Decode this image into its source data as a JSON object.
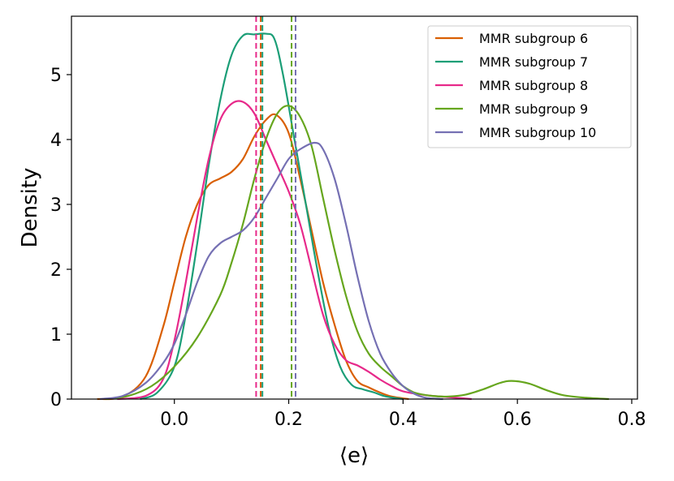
{
  "chart_data": {
    "type": "line",
    "title": "",
    "xlabel": "⟨e⟩",
    "ylabel": "Density",
    "xlim": [
      -0.18,
      0.81
    ],
    "ylim": [
      0,
      5.9
    ],
    "xticks": [
      0.0,
      0.2,
      0.4,
      0.6,
      0.8
    ],
    "xtick_labels": [
      "0.0",
      "0.2",
      "0.4",
      "0.6",
      "0.8"
    ],
    "yticks": [
      0,
      1,
      2,
      3,
      4,
      5
    ],
    "ytick_labels": [
      "0",
      "1",
      "2",
      "3",
      "4",
      "5"
    ],
    "grid": false,
    "legend_position": "top-right",
    "series": [
      {
        "name": "MMR subgroup 6",
        "color": "#d95f02",
        "mean": 0.151,
        "points": [
          [
            -0.135,
            0
          ],
          [
            -0.09,
            0.04
          ],
          [
            -0.05,
            0.35
          ],
          [
            -0.02,
            1.1
          ],
          [
            0.0,
            1.8
          ],
          [
            0.02,
            2.5
          ],
          [
            0.04,
            3.0
          ],
          [
            0.06,
            3.3
          ],
          [
            0.08,
            3.4
          ],
          [
            0.1,
            3.5
          ],
          [
            0.12,
            3.7
          ],
          [
            0.14,
            4.05
          ],
          [
            0.16,
            4.3
          ],
          [
            0.178,
            4.38
          ],
          [
            0.2,
            4.1
          ],
          [
            0.22,
            3.4
          ],
          [
            0.24,
            2.6
          ],
          [
            0.26,
            1.8
          ],
          [
            0.28,
            1.15
          ],
          [
            0.3,
            0.6
          ],
          [
            0.32,
            0.28
          ],
          [
            0.34,
            0.18
          ],
          [
            0.36,
            0.1
          ],
          [
            0.38,
            0.04
          ],
          [
            0.41,
            0
          ]
        ]
      },
      {
        "name": "MMR subgroup 7",
        "color": "#1b9e77",
        "mean": 0.154,
        "points": [
          [
            -0.06,
            0
          ],
          [
            -0.03,
            0.1
          ],
          [
            0.0,
            0.5
          ],
          [
            0.02,
            1.3
          ],
          [
            0.04,
            2.4
          ],
          [
            0.06,
            3.6
          ],
          [
            0.08,
            4.6
          ],
          [
            0.1,
            5.3
          ],
          [
            0.12,
            5.6
          ],
          [
            0.14,
            5.62
          ],
          [
            0.16,
            5.63
          ],
          [
            0.175,
            5.55
          ],
          [
            0.19,
            5.0
          ],
          [
            0.21,
            4.0
          ],
          [
            0.23,
            3.0
          ],
          [
            0.25,
            2.0
          ],
          [
            0.27,
            1.1
          ],
          [
            0.29,
            0.5
          ],
          [
            0.31,
            0.22
          ],
          [
            0.33,
            0.15
          ],
          [
            0.35,
            0.1
          ],
          [
            0.37,
            0.04
          ],
          [
            0.4,
            0
          ]
        ]
      },
      {
        "name": "MMR subgroup 8",
        "color": "#e7298a",
        "mean": 0.143,
        "points": [
          [
            -0.1,
            0
          ],
          [
            -0.05,
            0.05
          ],
          [
            -0.02,
            0.3
          ],
          [
            0.0,
            0.9
          ],
          [
            0.02,
            1.8
          ],
          [
            0.04,
            2.8
          ],
          [
            0.06,
            3.7
          ],
          [
            0.08,
            4.3
          ],
          [
            0.1,
            4.55
          ],
          [
            0.12,
            4.58
          ],
          [
            0.14,
            4.4
          ],
          [
            0.16,
            4.0
          ],
          [
            0.18,
            3.6
          ],
          [
            0.2,
            3.2
          ],
          [
            0.22,
            2.7
          ],
          [
            0.24,
            2.0
          ],
          [
            0.26,
            1.3
          ],
          [
            0.28,
            0.85
          ],
          [
            0.3,
            0.6
          ],
          [
            0.32,
            0.52
          ],
          [
            0.34,
            0.42
          ],
          [
            0.36,
            0.3
          ],
          [
            0.38,
            0.2
          ],
          [
            0.4,
            0.12
          ],
          [
            0.44,
            0.06
          ],
          [
            0.48,
            0.03
          ],
          [
            0.52,
            0
          ]
        ]
      },
      {
        "name": "MMR subgroup 9",
        "color": "#66a61e",
        "mean": 0.205,
        "points": [
          [
            -0.12,
            0
          ],
          [
            -0.08,
            0.05
          ],
          [
            -0.04,
            0.2
          ],
          [
            0.0,
            0.5
          ],
          [
            0.04,
            0.95
          ],
          [
            0.08,
            1.6
          ],
          [
            0.1,
            2.1
          ],
          [
            0.12,
            2.7
          ],
          [
            0.14,
            3.4
          ],
          [
            0.16,
            4.0
          ],
          [
            0.18,
            4.4
          ],
          [
            0.2,
            4.52
          ],
          [
            0.22,
            4.35
          ],
          [
            0.24,
            3.9
          ],
          [
            0.26,
            3.1
          ],
          [
            0.28,
            2.3
          ],
          [
            0.3,
            1.6
          ],
          [
            0.32,
            1.05
          ],
          [
            0.34,
            0.7
          ],
          [
            0.36,
            0.5
          ],
          [
            0.38,
            0.35
          ],
          [
            0.4,
            0.2
          ],
          [
            0.42,
            0.1
          ],
          [
            0.45,
            0.05
          ],
          [
            0.48,
            0.04
          ],
          [
            0.51,
            0.07
          ],
          [
            0.54,
            0.15
          ],
          [
            0.57,
            0.25
          ],
          [
            0.59,
            0.28
          ],
          [
            0.62,
            0.24
          ],
          [
            0.65,
            0.14
          ],
          [
            0.68,
            0.06
          ],
          [
            0.72,
            0.02
          ],
          [
            0.76,
            0
          ]
        ]
      },
      {
        "name": "MMR subgroup 10",
        "color": "#7570b3",
        "mean": 0.212,
        "points": [
          [
            -0.13,
            0
          ],
          [
            -0.09,
            0.05
          ],
          [
            -0.05,
            0.25
          ],
          [
            -0.02,
            0.55
          ],
          [
            0.0,
            0.85
          ],
          [
            0.02,
            1.3
          ],
          [
            0.04,
            1.8
          ],
          [
            0.06,
            2.2
          ],
          [
            0.08,
            2.4
          ],
          [
            0.1,
            2.5
          ],
          [
            0.12,
            2.6
          ],
          [
            0.14,
            2.8
          ],
          [
            0.16,
            3.1
          ],
          [
            0.18,
            3.4
          ],
          [
            0.2,
            3.7
          ],
          [
            0.22,
            3.85
          ],
          [
            0.245,
            3.95
          ],
          [
            0.26,
            3.85
          ],
          [
            0.28,
            3.4
          ],
          [
            0.3,
            2.7
          ],
          [
            0.32,
            1.9
          ],
          [
            0.34,
            1.2
          ],
          [
            0.36,
            0.7
          ],
          [
            0.38,
            0.4
          ],
          [
            0.4,
            0.2
          ],
          [
            0.42,
            0.08
          ],
          [
            0.44,
            0.02
          ],
          [
            0.47,
            0
          ]
        ]
      }
    ]
  }
}
